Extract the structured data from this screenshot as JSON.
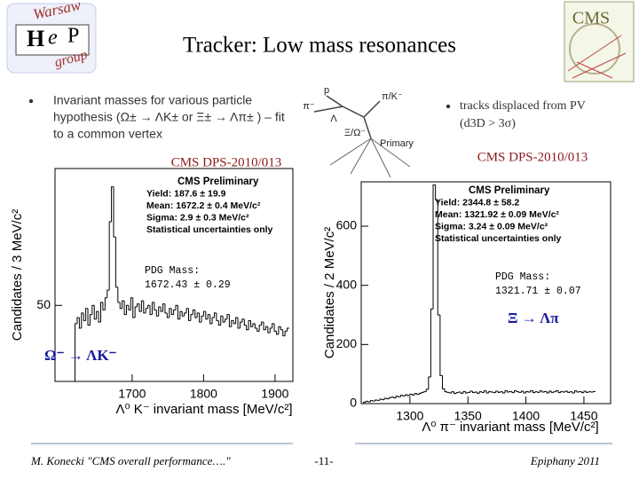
{
  "slide": {
    "title": "Tracker: Low mass resonances",
    "logo_left": [
      "Warsaw",
      "H",
      "e",
      "P",
      "group"
    ],
    "logo_right": "CMS",
    "bullet_left": [
      "Invariant masses for various particle",
      "hypothesis (Ω± → ΛK± or Ξ± → Λπ± ) – fit",
      "to a common vertex"
    ],
    "bullet_right": [
      "tracks displaced from PV",
      "(d3D > 3σ)"
    ],
    "diagram_labels": [
      "p",
      "π⁻",
      "π/K⁻",
      "Λ",
      "Ξ/Ω⁻",
      "Primary"
    ],
    "footer": {
      "author": "M. Konecki \"CMS overall performance….\"",
      "page": "-11-",
      "event": "Epiphany 2011"
    }
  },
  "chart_data": [
    {
      "type": "histogram",
      "source": "CMS DPS-2010/013",
      "legend_text": [
        "CMS Preliminary",
        "Yield: 187.6 ± 19.9",
        "Mean: 1672.2 ± 0.4 MeV/c²",
        "Sigma: 2.9 ± 0.3 MeV/c²",
        "Statistical uncertainties only"
      ],
      "pdg": [
        "PDG Mass:",
        "1672.43 ± 0.29"
      ],
      "decay": "Ω⁻ → ΛK⁻",
      "y_label": "Candidates / 3 MeV/c²",
      "x_label": "Λ⁰ K⁻ invariant mass [MeV/c²]",
      "color": "#000000",
      "xlim": [
        1592,
        1925
      ],
      "xticks": [
        1700,
        1800,
        1900
      ],
      "ylim": [
        0,
        140
      ],
      "yticks": [
        50
      ],
      "bins": [
        1620,
        1623,
        1626,
        1629,
        1632,
        1635,
        1638,
        1641,
        1644,
        1647,
        1650,
        1653,
        1656,
        1659,
        1662,
        1665,
        1668,
        1671,
        1674,
        1677,
        1680,
        1683,
        1686,
        1689,
        1692,
        1695,
        1698,
        1701,
        1704,
        1707,
        1710,
        1713,
        1716,
        1719,
        1722,
        1725,
        1728,
        1731,
        1734,
        1737,
        1740,
        1743,
        1746,
        1749,
        1752,
        1755,
        1758,
        1761,
        1764,
        1767,
        1770,
        1773,
        1776,
        1779,
        1782,
        1785,
        1788,
        1791,
        1794,
        1797,
        1800,
        1803,
        1806,
        1809,
        1812,
        1815,
        1818,
        1821,
        1824,
        1827,
        1830,
        1833,
        1836,
        1839,
        1842,
        1845,
        1848,
        1851,
        1854,
        1857,
        1860,
        1863,
        1866,
        1869,
        1872,
        1875,
        1878,
        1881,
        1884,
        1887,
        1890,
        1893,
        1896,
        1899,
        1902,
        1905,
        1908,
        1911,
        1914,
        1917,
        1920
      ],
      "values": [
        38,
        42,
        35,
        45,
        40,
        48,
        37,
        44,
        50,
        41,
        46,
        39,
        52,
        47,
        55,
        60,
        105,
        128,
        95,
        62,
        52,
        48,
        53,
        44,
        50,
        47,
        55,
        42,
        49,
        51,
        46,
        53,
        45,
        48,
        50,
        44,
        52,
        47,
        43,
        49,
        46,
        51,
        45,
        42,
        48,
        44,
        47,
        50,
        41,
        46,
        43,
        45,
        48,
        40,
        44,
        47,
        42,
        45,
        39,
        43,
        46,
        41,
        44,
        38,
        42,
        45,
        40,
        37,
        43,
        39,
        41,
        44,
        36,
        40,
        38,
        42,
        35,
        39,
        41,
        37,
        34,
        40,
        36,
        38,
        35,
        33,
        37,
        39,
        34,
        36,
        32,
        35,
        38,
        33,
        31,
        36,
        34,
        30,
        33,
        35
      ]
    },
    {
      "type": "histogram",
      "source": "CMS DPS-2010/013",
      "legend_text": [
        "CMS Preliminary",
        "Yield: 2344.8 ± 58.2",
        "Mean: 1321.92 ± 0.09 MeV/c²",
        "Sigma: 3.24 ± 0.09 MeV/c²",
        "Statistical uncertainties only"
      ],
      "pdg": [
        "PDG Mass:",
        "1321.71 ± 0.07"
      ],
      "decay": "Ξ → Λπ",
      "y_label": "Candidates / 2 MeV/c²",
      "x_label": "Λ⁰ π⁻ invariant mass [MeV/c²]",
      "color": "#000000",
      "xlim": [
        1258,
        1473
      ],
      "xticks": [
        1300,
        1350,
        1400,
        1450
      ],
      "ylim": [
        0,
        750
      ],
      "yticks": [
        0,
        200,
        400,
        600
      ],
      "bins": [
        1260,
        1262,
        1264,
        1266,
        1268,
        1270,
        1272,
        1274,
        1276,
        1278,
        1280,
        1282,
        1284,
        1286,
        1288,
        1290,
        1292,
        1294,
        1296,
        1298,
        1300,
        1302,
        1304,
        1306,
        1308,
        1310,
        1312,
        1314,
        1316,
        1318,
        1320,
        1322,
        1324,
        1326,
        1328,
        1330,
        1332,
        1334,
        1336,
        1338,
        1340,
        1342,
        1344,
        1346,
        1348,
        1350,
        1352,
        1354,
        1356,
        1358,
        1360,
        1362,
        1364,
        1366,
        1368,
        1370,
        1372,
        1374,
        1376,
        1378,
        1380,
        1382,
        1384,
        1386,
        1388,
        1390,
        1392,
        1394,
        1396,
        1398,
        1400,
        1402,
        1404,
        1406,
        1408,
        1410,
        1412,
        1414,
        1416,
        1418,
        1420,
        1422,
        1424,
        1426,
        1428,
        1430,
        1432,
        1434,
        1436,
        1438,
        1440,
        1442,
        1444,
        1446,
        1448,
        1450,
        1452,
        1454,
        1456,
        1458,
        1460
      ],
      "values": [
        5,
        8,
        6,
        10,
        9,
        12,
        11,
        15,
        13,
        18,
        16,
        20,
        22,
        19,
        25,
        23,
        28,
        26,
        30,
        27,
        32,
        29,
        34,
        31,
        35,
        38,
        40,
        48,
        90,
        320,
        740,
        690,
        300,
        95,
        50,
        40,
        38,
        36,
        40,
        34,
        37,
        39,
        35,
        41,
        36,
        38,
        42,
        37,
        39,
        35,
        40,
        38,
        43,
        36,
        41,
        39,
        37,
        42,
        38,
        40,
        36,
        44,
        39,
        41,
        37,
        43,
        40,
        38,
        42,
        36,
        41,
        39,
        44,
        37,
        40,
        38,
        43,
        39,
        41,
        36,
        42,
        38,
        40,
        44,
        37,
        41,
        39,
        42,
        38,
        40,
        36,
        43,
        39,
        41,
        37,
        42,
        38,
        40,
        39,
        41
      ]
    }
  ]
}
